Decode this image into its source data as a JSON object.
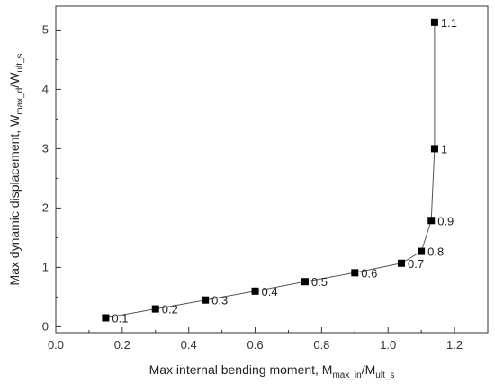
{
  "chart_data": {
    "type": "line",
    "xlabel": {
      "main": "Max internal bending moment, M",
      "sub1": "max_in",
      "mid": "/M",
      "sub2": "ult_s"
    },
    "ylabel": {
      "main": "Max dynamic displacement, W",
      "sub1": "max_d",
      "mid": "/W",
      "sub2": "ult_s"
    },
    "xlim": [
      0.0,
      1.3
    ],
    "ylim": [
      -0.1,
      5.4
    ],
    "x_ticks": [
      "0.0",
      "0.2",
      "0.4",
      "0.6",
      "0.8",
      "1.0",
      "1.2"
    ],
    "y_ticks": [
      "0",
      "1",
      "2",
      "3",
      "4",
      "5"
    ],
    "grid": false,
    "series": [
      {
        "marker": "square",
        "color": "#000000",
        "points": [
          {
            "x": 0.15,
            "y": 0.15,
            "label": "0.1"
          },
          {
            "x": 0.3,
            "y": 0.3,
            "label": "0.2"
          },
          {
            "x": 0.45,
            "y": 0.45,
            "label": "0.3"
          },
          {
            "x": 0.6,
            "y": 0.6,
            "label": "0.4"
          },
          {
            "x": 0.75,
            "y": 0.76,
            "label": "0.5"
          },
          {
            "x": 0.9,
            "y": 0.91,
            "label": "0.6"
          },
          {
            "x": 1.04,
            "y": 1.07,
            "label": "0.7"
          },
          {
            "x": 1.1,
            "y": 1.27,
            "label": "0.8"
          },
          {
            "x": 1.13,
            "y": 1.79,
            "label": "0.9"
          },
          {
            "x": 1.14,
            "y": 3.0,
            "label": "1"
          },
          {
            "x": 1.14,
            "y": 5.13,
            "label": "1.1"
          }
        ]
      }
    ]
  }
}
